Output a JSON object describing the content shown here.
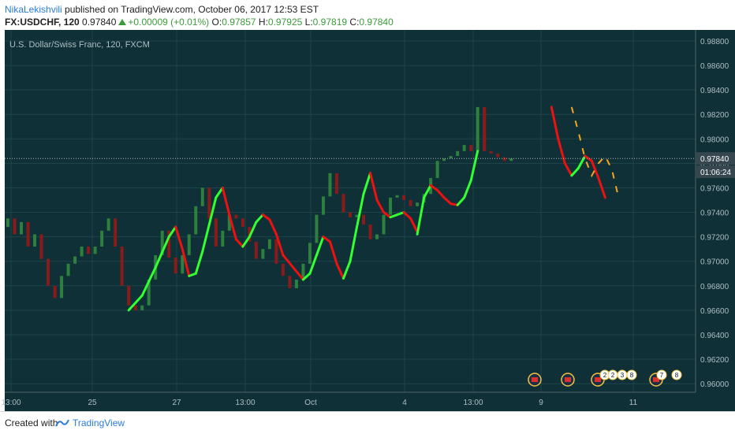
{
  "header": {
    "author": "NikaLekishvili",
    "published_text": " published on TradingView.com, October 06, 2017 12:53 EST",
    "symbol": "FX:USDCHF, 120",
    "last": "0.97840",
    "change": "+0.00009 (+0.01%)",
    "o_label": "O:",
    "o_value": "0.97857",
    "h_label": "H:",
    "h_value": "0.97925",
    "l_label": "L:",
    "l_value": "0.97819",
    "c_label": "C:",
    "c_value": "0.97840"
  },
  "footer": {
    "created_with": "Created with",
    "brand": "TradingView"
  },
  "colors": {
    "background": "#0e3036",
    "grid": "#1f454b",
    "candle_up": "#2f7f3e",
    "candle_down": "#8b1a1a",
    "curve_up": "#33ff33",
    "curve_down": "#ee1111",
    "projection": "#f5a623",
    "price_tag": "#37474f",
    "axis_text": "#b0bec5"
  },
  "chart_data": {
    "type": "candlestick",
    "title": "U.S. Dollar/Swiss Franc, 120, FXCM",
    "ylim": [
      0.9593,
      0.9889
    ],
    "y_ticks": [
      "0.98800",
      "0.98600",
      "0.98400",
      "0.98200",
      "0.98000",
      "0.97800",
      "0.97600",
      "0.97400",
      "0.97200",
      "0.97000",
      "0.96800",
      "0.96600",
      "0.96400",
      "0.96200",
      "0.96000"
    ],
    "x_ticks": [
      "13:00",
      "25",
      "27",
      "13:00",
      "Oct",
      "4",
      "13:00",
      "9",
      "11"
    ],
    "current_price_label": "0.97840",
    "countdown_label": "01:06:24",
    "current_price": 0.9784,
    "event_badges": [
      "2",
      "2",
      "3",
      "8",
      "7",
      "8"
    ],
    "bars": [
      [
        0.9728,
        0.9735
      ],
      [
        0.9735,
        0.9722
      ],
      [
        0.9722,
        0.9732
      ],
      [
        0.9732,
        0.9712
      ],
      [
        0.9712,
        0.9722
      ],
      [
        0.9722,
        0.9702
      ],
      [
        0.9702,
        0.968
      ],
      [
        0.968,
        0.967
      ],
      [
        0.967,
        0.9688
      ],
      [
        0.9688,
        0.9698
      ],
      [
        0.9698,
        0.9704
      ],
      [
        0.9704,
        0.9712
      ],
      [
        0.9712,
        0.9706
      ],
      [
        0.9706,
        0.9712
      ],
      [
        0.9712,
        0.9725
      ],
      [
        0.9725,
        0.9735
      ],
      [
        0.9735,
        0.9712
      ],
      [
        0.9712,
        0.968
      ],
      [
        0.968,
        0.9664
      ],
      [
        0.9664,
        0.966
      ],
      [
        0.966,
        0.9664
      ],
      [
        0.9664,
        0.9685
      ],
      [
        0.9685,
        0.9705
      ],
      [
        0.9705,
        0.9725
      ],
      [
        0.9725,
        0.9703
      ],
      [
        0.9703,
        0.969
      ],
      [
        0.969,
        0.9705
      ],
      [
        0.9705,
        0.9722
      ],
      [
        0.9722,
        0.9745
      ],
      [
        0.9745,
        0.976
      ],
      [
        0.976,
        0.9735
      ],
      [
        0.9735,
        0.9712
      ],
      [
        0.9712,
        0.9725
      ],
      [
        0.9725,
        0.9738
      ],
      [
        0.9738,
        0.9735
      ],
      [
        0.9735,
        0.9728
      ],
      [
        0.9728,
        0.9716
      ],
      [
        0.9716,
        0.9702
      ],
      [
        0.9702,
        0.971
      ],
      [
        0.971,
        0.9718
      ],
      [
        0.9718,
        0.9698
      ],
      [
        0.9698,
        0.9688
      ],
      [
        0.9688,
        0.9678
      ],
      [
        0.9678,
        0.9685
      ],
      [
        0.9685,
        0.9698
      ],
      [
        0.9698,
        0.9715
      ],
      [
        0.9715,
        0.9738
      ],
      [
        0.9738,
        0.9753
      ],
      [
        0.9753,
        0.9772
      ],
      [
        0.9772,
        0.9755
      ],
      [
        0.9755,
        0.974
      ],
      [
        0.974,
        0.9736
      ],
      [
        0.9736,
        0.9738
      ],
      [
        0.9738,
        0.973
      ],
      [
        0.973,
        0.9718
      ],
      [
        0.9718,
        0.9722
      ],
      [
        0.9722,
        0.9738
      ],
      [
        0.9738,
        0.9752
      ],
      [
        0.9752,
        0.9754
      ],
      [
        0.9754,
        0.975
      ],
      [
        0.975,
        0.9745
      ],
      [
        0.9745,
        0.9748
      ],
      [
        0.9748,
        0.9755
      ],
      [
        0.9755,
        0.9768
      ],
      [
        0.9768,
        0.9782
      ],
      [
        0.9782,
        0.9784
      ],
      [
        0.9784,
        0.9786
      ],
      [
        0.9786,
        0.979
      ],
      [
        0.979,
        0.9795
      ],
      [
        0.9795,
        0.979
      ],
      [
        0.979,
        0.9826
      ],
      [
        0.9826,
        0.979
      ],
      [
        0.979,
        0.9788
      ],
      [
        0.9788,
        0.9785
      ],
      [
        0.9785,
        0.9782
      ],
      [
        0.9782,
        0.9784
      ]
    ],
    "cycle_curve": [
      [
        18,
        0.966
      ],
      [
        20,
        0.9672
      ],
      [
        22,
        0.9695
      ],
      [
        24,
        0.972
      ],
      [
        25,
        0.9728
      ],
      [
        26,
        0.971
      ],
      [
        27,
        0.9688
      ],
      [
        28,
        0.969
      ],
      [
        29,
        0.9708
      ],
      [
        30,
        0.973
      ],
      [
        31,
        0.9752
      ],
      [
        32,
        0.976
      ],
      [
        32,
        0.976
      ],
      [
        33,
        0.9738
      ],
      [
        34,
        0.9718
      ],
      [
        35,
        0.9712
      ],
      [
        36,
        0.972
      ],
      [
        37,
        0.9732
      ],
      [
        38,
        0.9738
      ],
      [
        39,
        0.9734
      ],
      [
        40,
        0.9722
      ],
      [
        41,
        0.9705
      ],
      [
        44,
        0.9685
      ],
      [
        45,
        0.969
      ],
      [
        46,
        0.9705
      ],
      [
        47,
        0.972
      ],
      [
        48,
        0.9716
      ],
      [
        49,
        0.9698
      ],
      [
        50,
        0.9686
      ],
      [
        51,
        0.97
      ],
      [
        52,
        0.9728
      ],
      [
        53,
        0.9755
      ],
      [
        54,
        0.9772
      ],
      [
        54,
        0.9772
      ],
      [
        55,
        0.975
      ],
      [
        56,
        0.974
      ],
      [
        57,
        0.9736
      ],
      [
        58,
        0.9738
      ],
      [
        59,
        0.974
      ],
      [
        60,
        0.9735
      ],
      [
        61,
        0.9724
      ],
      [
        61,
        0.9722
      ],
      [
        62,
        0.9752
      ],
      [
        63,
        0.9762
      ],
      [
        64,
        0.9758
      ],
      [
        65,
        0.9752
      ],
      [
        66,
        0.9747
      ],
      [
        67,
        0.9746
      ],
      [
        68,
        0.9752
      ],
      [
        69,
        0.9766
      ],
      [
        70,
        0.979
      ],
      [
        81,
        0.9826
      ],
      [
        82,
        0.98
      ],
      [
        83,
        0.978
      ],
      [
        84,
        0.977
      ],
      [
        85,
        0.9776
      ],
      [
        86,
        0.9786
      ],
      [
        87,
        0.9782
      ],
      [
        88,
        0.9768
      ],
      [
        89,
        0.9752
      ]
    ],
    "projection": [
      [
        84,
        0.9826
      ],
      [
        85,
        0.9806
      ],
      [
        86,
        0.9784
      ],
      [
        87,
        0.977
      ],
      [
        88,
        0.978
      ],
      [
        89,
        0.9786
      ],
      [
        90,
        0.9775
      ],
      [
        91,
        0.9752
      ]
    ]
  }
}
